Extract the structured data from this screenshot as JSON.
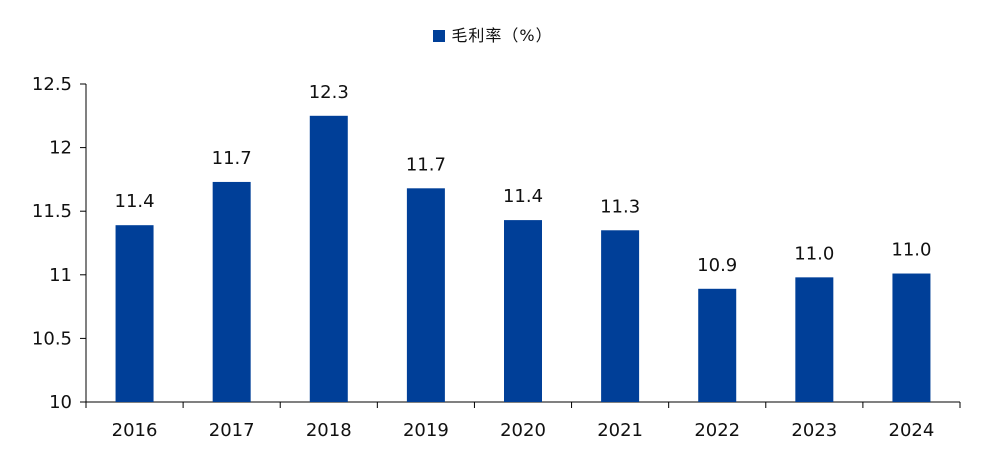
{
  "legend": {
    "label": "毛利率（%）",
    "color": "#003f98"
  },
  "chart_data": {
    "type": "bar",
    "categories": [
      "2016",
      "2017",
      "2018",
      "2019",
      "2020",
      "2021",
      "2022",
      "2023",
      "2024"
    ],
    "series": [
      {
        "name": "毛利率（%）",
        "values": [
          11.39,
          11.73,
          12.25,
          11.68,
          11.43,
          11.35,
          10.89,
          10.98,
          11.01
        ],
        "labels": [
          "11.4",
          "11.7",
          "12.3",
          "11.7",
          "11.4",
          "11.3",
          "10.9",
          "11.0",
          "11.0"
        ]
      }
    ],
    "ylim": [
      10,
      12.5
    ],
    "yticks": [
      10,
      10.5,
      11,
      11.5,
      12,
      12.5
    ],
    "ytick_labels": [
      "10",
      "10.5",
      "11",
      "11.5",
      "12",
      "12.5"
    ],
    "grid": false,
    "legend_position": "top-center",
    "bar_color": "#003f98"
  }
}
